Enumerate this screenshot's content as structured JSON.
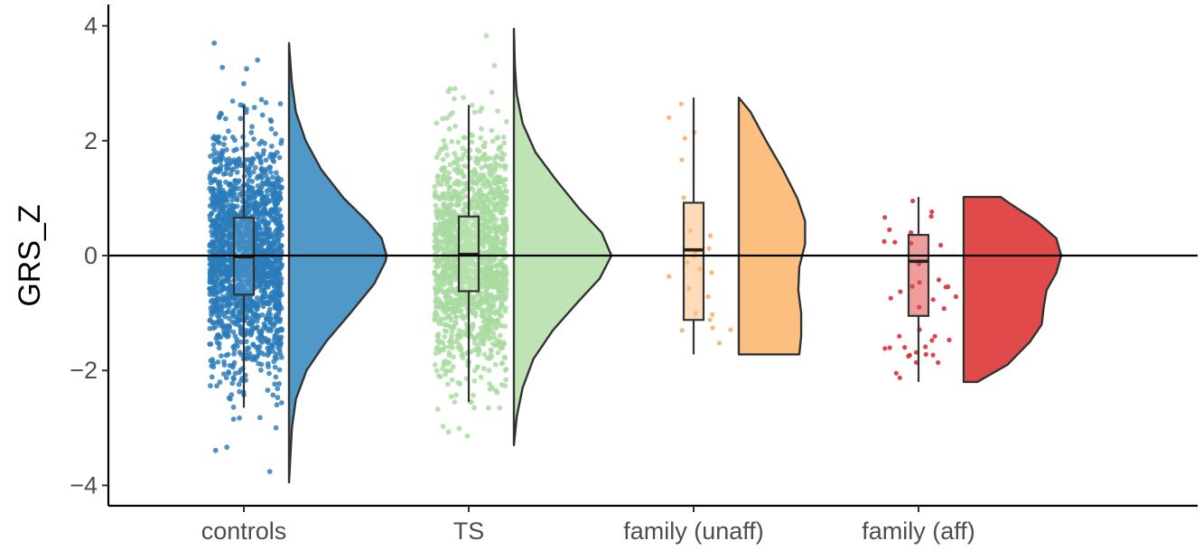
{
  "chart_data": {
    "type": "raincloud",
    "ylabel": "GRS_Z",
    "xlabel": "",
    "ylim": [
      -4.2,
      4.3
    ],
    "yticks": [
      -4,
      -2,
      0,
      2,
      4
    ],
    "ytick_labels": [
      "−4",
      "−2",
      "0",
      "2",
      "4"
    ],
    "reference_line_y": 0,
    "grid": false,
    "legend": "none",
    "categories": [
      "controls",
      "TS",
      "family (unaff)",
      "family (aff)"
    ],
    "groups": [
      {
        "name": "controls",
        "color": "#2b7bba",
        "fill": "#4f98c7",
        "box": {
          "min": -2.65,
          "q1": -0.68,
          "median": -0.02,
          "q3": 0.66,
          "max": 2.62
        },
        "point_count": 1800,
        "point_range": [
          -3.9,
          3.7
        ],
        "density": [
          [
            -3.95,
            0.0
          ],
          [
            -3.0,
            0.03
          ],
          [
            -2.5,
            0.07
          ],
          [
            -2.0,
            0.18
          ],
          [
            -1.5,
            0.38
          ],
          [
            -1.0,
            0.63
          ],
          [
            -0.5,
            0.87
          ],
          [
            -0.1,
            0.99
          ],
          [
            0.0,
            1.0
          ],
          [
            0.3,
            0.95
          ],
          [
            0.6,
            0.8
          ],
          [
            1.0,
            0.56
          ],
          [
            1.5,
            0.33
          ],
          [
            2.0,
            0.17
          ],
          [
            2.5,
            0.07
          ],
          [
            3.0,
            0.03
          ],
          [
            3.7,
            0.0
          ]
        ]
      },
      {
        "name": "TS",
        "color": "#a8dba0",
        "fill": "#bfe3b4",
        "box": {
          "min": -2.55,
          "q1": -0.62,
          "median": 0.02,
          "q3": 0.68,
          "max": 2.62
        },
        "point_count": 1500,
        "point_range": [
          -3.3,
          3.95
        ],
        "density": [
          [
            -3.3,
            0.0
          ],
          [
            -2.8,
            0.03
          ],
          [
            -2.3,
            0.09
          ],
          [
            -1.8,
            0.2
          ],
          [
            -1.3,
            0.4
          ],
          [
            -0.8,
            0.66
          ],
          [
            -0.4,
            0.88
          ],
          [
            0.0,
            1.0
          ],
          [
            0.4,
            0.9
          ],
          [
            0.8,
            0.68
          ],
          [
            1.3,
            0.44
          ],
          [
            1.8,
            0.22
          ],
          [
            2.3,
            0.09
          ],
          [
            2.8,
            0.03
          ],
          [
            3.3,
            0.01
          ],
          [
            3.95,
            0.0
          ]
        ]
      },
      {
        "name": "family (unaff)",
        "color": "#fdb06a",
        "fill": "#fdbf80",
        "box": {
          "min": -1.72,
          "q1": -1.12,
          "median": 0.1,
          "q3": 0.92,
          "max": 2.75
        },
        "point_count": 24,
        "point_range": [
          -1.72,
          2.75
        ],
        "density": [
          [
            -1.72,
            0.62
          ],
          [
            -1.4,
            0.64
          ],
          [
            -1.0,
            0.64
          ],
          [
            -0.6,
            0.61
          ],
          [
            -0.2,
            0.62
          ],
          [
            0.2,
            0.68
          ],
          [
            0.6,
            0.68
          ],
          [
            1.0,
            0.6
          ],
          [
            1.5,
            0.45
          ],
          [
            2.0,
            0.28
          ],
          [
            2.5,
            0.12
          ],
          [
            2.75,
            0.0
          ]
        ]
      },
      {
        "name": "family (aff)",
        "color": "#d9303a",
        "fill": "#e04a4a",
        "box": {
          "min": -2.2,
          "q1": -1.05,
          "median": -0.1,
          "q3": 0.36,
          "max": 1.02
        },
        "point_count": 40,
        "point_range": [
          -2.2,
          1.02
        ],
        "density": [
          [
            -2.2,
            0.14
          ],
          [
            -1.9,
            0.45
          ],
          [
            -1.5,
            0.68
          ],
          [
            -1.2,
            0.8
          ],
          [
            -0.9,
            0.82
          ],
          [
            -0.6,
            0.85
          ],
          [
            -0.3,
            0.95
          ],
          [
            0.0,
            1.0
          ],
          [
            0.3,
            0.95
          ],
          [
            0.6,
            0.75
          ],
          [
            0.9,
            0.48
          ],
          [
            1.02,
            0.38
          ]
        ]
      }
    ]
  }
}
